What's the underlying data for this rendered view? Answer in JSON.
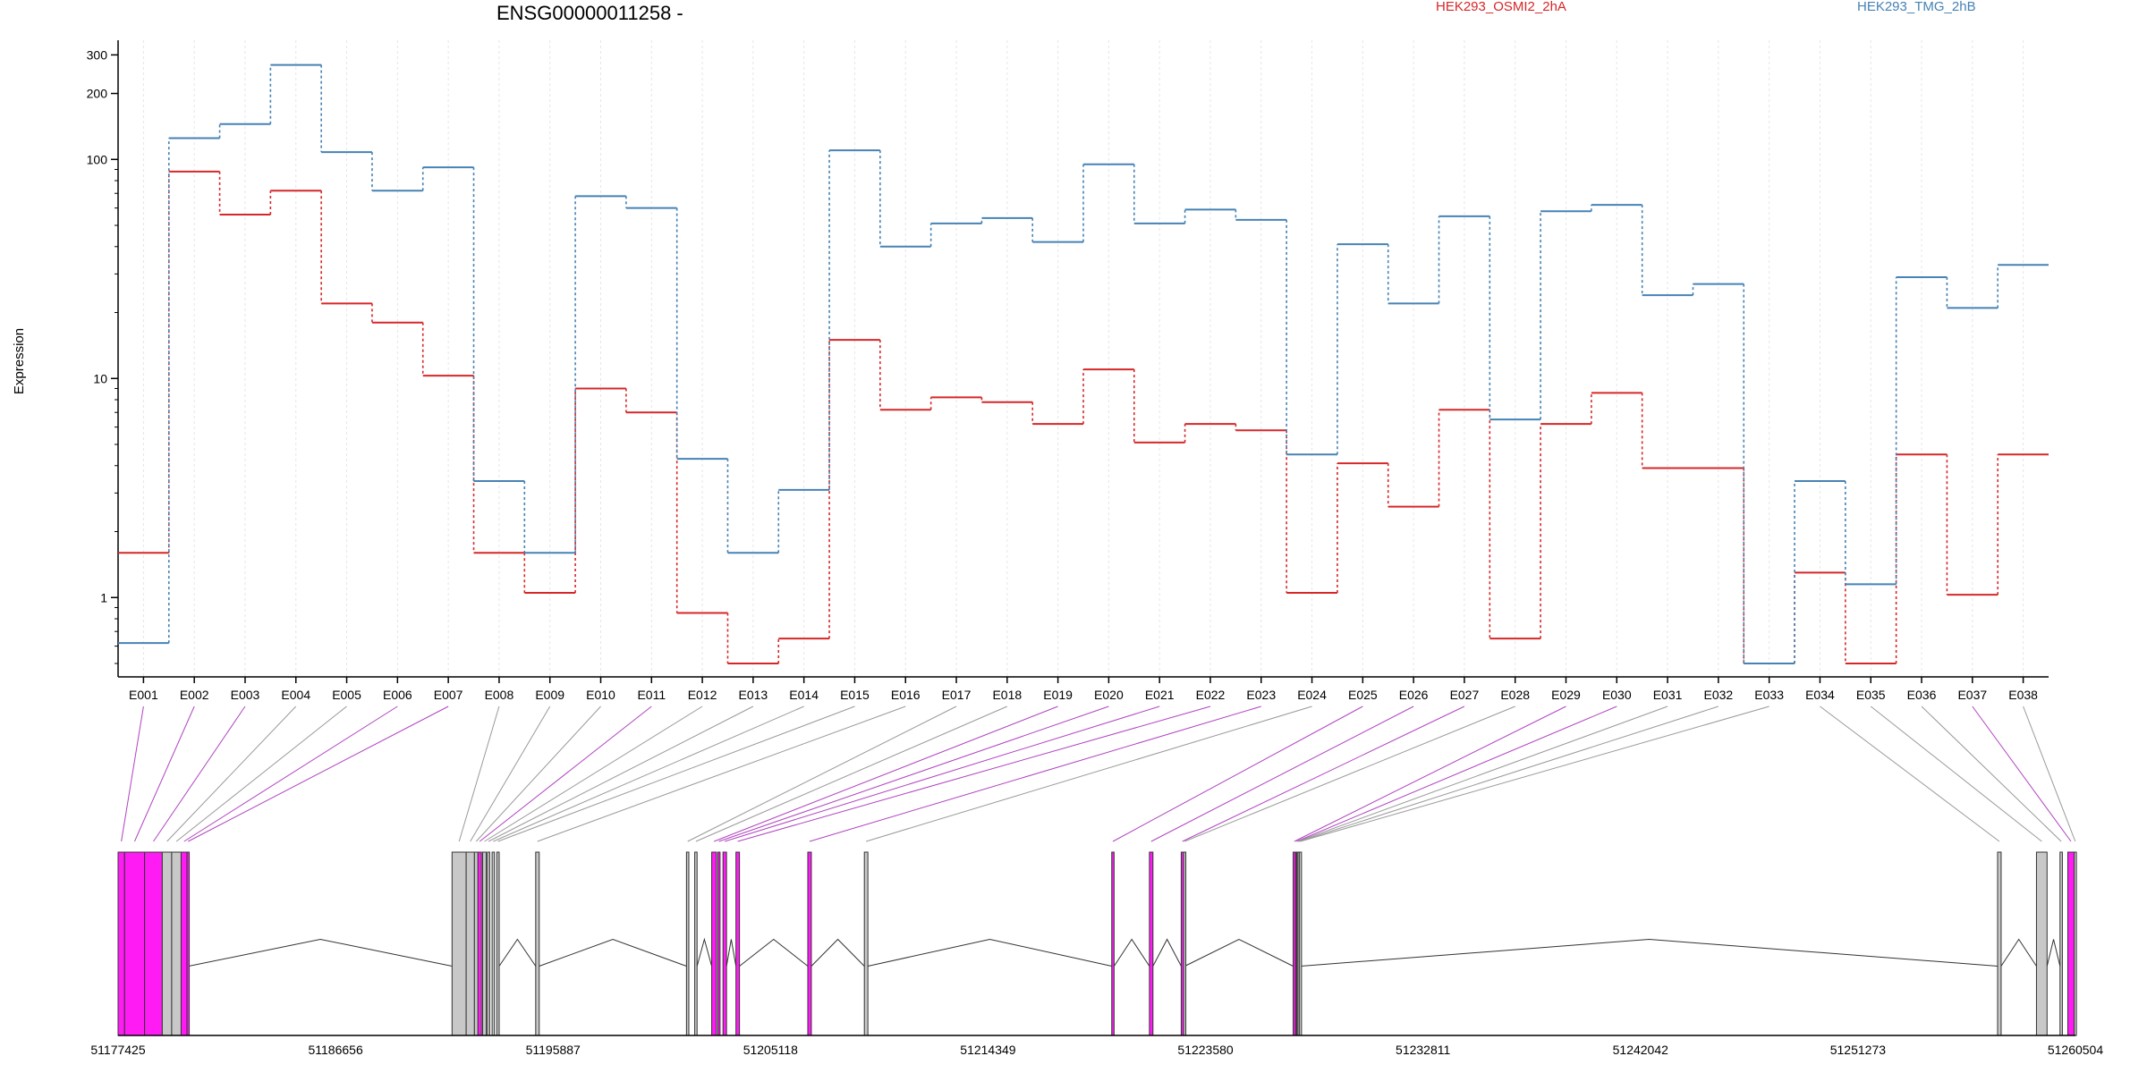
{
  "chart_data": {
    "type": "line",
    "title": "ENSG00000011258 -",
    "ylabel": "Expression",
    "yscale": "log",
    "ylim": [
      0.5,
      350
    ],
    "yticks": [
      1,
      10,
      100,
      200,
      300
    ],
    "ytick_labels": [
      "1",
      "10",
      "100",
      "200",
      "300"
    ],
    "legend_position": "top",
    "categories": [
      "E001",
      "E002",
      "E003",
      "E004",
      "E005",
      "E006",
      "E007",
      "E008",
      "E009",
      "E010",
      "E011",
      "E012",
      "E013",
      "E014",
      "E015",
      "E016",
      "E017",
      "E018",
      "E019",
      "E020",
      "E021",
      "E022",
      "E023",
      "E024",
      "E025",
      "E026",
      "E027",
      "E028",
      "E029",
      "E030",
      "E031",
      "E032",
      "E033",
      "E034",
      "E035",
      "E036",
      "E037",
      "E038"
    ],
    "series": [
      {
        "name": "HEK293_OSMI2_2hA",
        "color": "#d62728",
        "values": [
          1.6,
          88,
          56,
          72,
          22,
          18,
          10.3,
          1.6,
          1.05,
          9,
          7,
          0.85,
          0.5,
          0.65,
          15,
          7.2,
          8.2,
          7.8,
          6.2,
          11,
          5.1,
          6.2,
          5.8,
          1.05,
          4.1,
          2.6,
          7.2,
          0.65,
          6.2,
          8.6,
          3.9,
          3.9,
          0.5,
          1.3,
          0.5,
          4.5,
          1.03,
          4.5
        ]
      },
      {
        "name": "HEK293_TMG_2hB",
        "color": "#4682b4",
        "values": [
          0.62,
          125,
          145,
          270,
          108,
          72,
          92,
          3.4,
          1.6,
          68,
          60,
          4.3,
          1.6,
          3.1,
          110,
          40,
          51,
          54,
          42,
          95,
          51,
          59,
          53,
          4.5,
          41,
          22,
          55,
          6.5,
          58,
          62,
          24,
          27,
          0.5,
          3.4,
          1.15,
          29,
          21,
          33
        ]
      }
    ],
    "gene_model": {
      "coordinate_ticks": [
        "51177425",
        "51186656",
        "51195887",
        "51205118",
        "51214349",
        "51223580",
        "51232811",
        "51242042",
        "51251273",
        "51260504"
      ],
      "highlight_color": "#ff1cf4",
      "normal_color": "#c8c8c8",
      "exons": [
        {
          "id": "E001",
          "start": 51177425,
          "end": 51177700,
          "highlight": true
        },
        {
          "id": "E002",
          "start": 51177700,
          "end": 51178550,
          "highlight": true
        },
        {
          "id": "E003",
          "start": 51178550,
          "end": 51179300,
          "highlight": true
        },
        {
          "id": "E004",
          "start": 51179300,
          "end": 51179700,
          "highlight": false
        },
        {
          "id": "E005",
          "start": 51179700,
          "end": 51180100,
          "highlight": false
        },
        {
          "id": "E006",
          "start": 51180100,
          "end": 51180350,
          "highlight": true
        },
        {
          "id": "E007",
          "start": 51180350,
          "end": 51180420,
          "highlight": true
        },
        {
          "id": "E008",
          "start": 51191600,
          "end": 51192200,
          "highlight": false
        },
        {
          "id": "E009",
          "start": 51192200,
          "end": 51192550,
          "highlight": false
        },
        {
          "id": "E010",
          "start": 51192550,
          "end": 51192700,
          "highlight": false
        },
        {
          "id": "E011",
          "start": 51192700,
          "end": 51192850,
          "highlight": true
        },
        {
          "id": "E012",
          "start": 51192900,
          "end": 51193050,
          "highlight": false
        },
        {
          "id": "E013",
          "start": 51193100,
          "end": 51193200,
          "highlight": false
        },
        {
          "id": "E014",
          "start": 51193300,
          "end": 51193400,
          "highlight": false
        },
        {
          "id": "E015",
          "start": 51193500,
          "end": 51193600,
          "highlight": false
        },
        {
          "id": "E016",
          "start": 51195150,
          "end": 51195300,
          "highlight": false
        },
        {
          "id": "E017",
          "start": 51201550,
          "end": 51201650,
          "highlight": false
        },
        {
          "id": "E018",
          "start": 51201900,
          "end": 51202000,
          "highlight": false
        },
        {
          "id": "E019",
          "start": 51202620,
          "end": 51202820,
          "highlight": true
        },
        {
          "id": "E020",
          "start": 51202880,
          "end": 51202950,
          "highlight": true
        },
        {
          "id": "E021",
          "start": 51203100,
          "end": 51203250,
          "highlight": true
        },
        {
          "id": "E022",
          "start": 51203650,
          "end": 51203800,
          "highlight": true
        },
        {
          "id": "E023",
          "start": 51206700,
          "end": 51206850,
          "highlight": true
        },
        {
          "id": "E024",
          "start": 51209100,
          "end": 51209250,
          "highlight": false
        },
        {
          "id": "E025",
          "start": 51219600,
          "end": 51219700,
          "highlight": true
        },
        {
          "id": "E026",
          "start": 51221200,
          "end": 51221350,
          "highlight": true
        },
        {
          "id": "E027",
          "start": 51222550,
          "end": 51222650,
          "highlight": true
        },
        {
          "id": "E028",
          "start": 51222650,
          "end": 51222700,
          "highlight": false
        },
        {
          "id": "E029",
          "start": 51227300,
          "end": 51227400,
          "highlight": true
        },
        {
          "id": "E030",
          "start": 51227400,
          "end": 51227450,
          "highlight": true
        },
        {
          "id": "E031",
          "start": 51227450,
          "end": 51227500,
          "highlight": false
        },
        {
          "id": "E032",
          "start": 51227500,
          "end": 51227560,
          "highlight": false
        },
        {
          "id": "E033",
          "start": 51227560,
          "end": 51227620,
          "highlight": false
        },
        {
          "id": "E034",
          "start": 51257200,
          "end": 51257350,
          "highlight": false
        },
        {
          "id": "E035",
          "start": 51258850,
          "end": 51259300,
          "highlight": false
        },
        {
          "id": "E036",
          "start": 51259850,
          "end": 51259950,
          "highlight": false
        },
        {
          "id": "E037",
          "start": 51260180,
          "end": 51260450,
          "highlight": true
        },
        {
          "id": "E038",
          "start": 51260450,
          "end": 51260504,
          "highlight": false
        }
      ]
    }
  }
}
